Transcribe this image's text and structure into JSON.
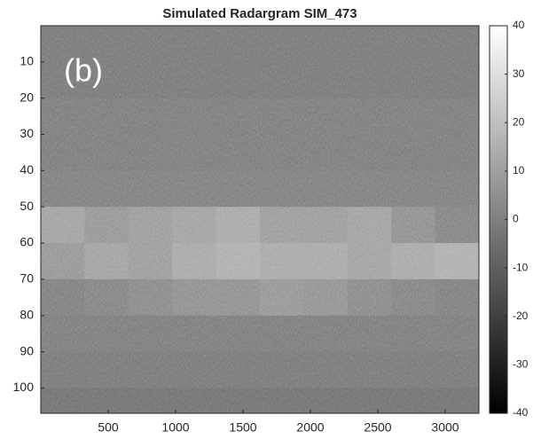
{
  "chart_data": {
    "type": "heatmap",
    "title": "Simulated Radargram SIM_473",
    "annotation": "(b)",
    "xbins": [
      0,
      325,
      650,
      975,
      1300,
      1625,
      1950,
      2275,
      2600,
      2925,
      3250
    ],
    "ybins": [
      0,
      10,
      20,
      30,
      40,
      50,
      60,
      70,
      80,
      90,
      100,
      107
    ],
    "matrix": [
      [
        -3,
        -3,
        -3,
        -3,
        -3,
        -3,
        -3,
        -3,
        -3,
        -3
      ],
      [
        -3,
        -3,
        -3,
        -3,
        -3,
        -3,
        -3,
        -3,
        -3,
        -3
      ],
      [
        -2,
        -2,
        -2,
        -2,
        -2,
        -2,
        -2,
        -2,
        -2,
        -2
      ],
      [
        -2,
        -2,
        -2,
        -2,
        -2,
        -2,
        -2,
        -2,
        -2,
        -2
      ],
      [
        -1,
        -1,
        -1,
        -1,
        -1,
        -1,
        -1,
        -1,
        -1,
        -1
      ],
      [
        10,
        6,
        8,
        10,
        12,
        8,
        8,
        10,
        4,
        0
      ],
      [
        6,
        10,
        8,
        12,
        14,
        12,
        12,
        10,
        12,
        14
      ],
      [
        -1,
        0,
        2,
        4,
        4,
        6,
        5,
        2,
        0,
        -1
      ],
      [
        -2,
        -2,
        -2,
        -2,
        -2,
        -2,
        -2,
        -2,
        -2,
        -2
      ],
      [
        -3,
        -3,
        -3,
        -3,
        -3,
        -3,
        -3,
        -3,
        -3,
        -3
      ],
      [
        -5,
        -5,
        -5,
        -5,
        -5,
        -5,
        -5,
        -5,
        -5,
        -5
      ]
    ],
    "xlim": [
      0,
      3250
    ],
    "xticks": [
      500,
      1000,
      1500,
      2000,
      2500,
      3000
    ],
    "ylim": [
      0,
      107
    ],
    "y_reversed": true,
    "yticks": [
      10,
      20,
      30,
      40,
      50,
      60,
      70,
      80,
      90,
      100
    ],
    "clim": [
      -40,
      40
    ],
    "cticks": [
      -40,
      -30,
      -20,
      -10,
      0,
      10,
      20,
      30,
      40
    ],
    "colormap": [
      "#000000",
      "#ffffff"
    ]
  }
}
